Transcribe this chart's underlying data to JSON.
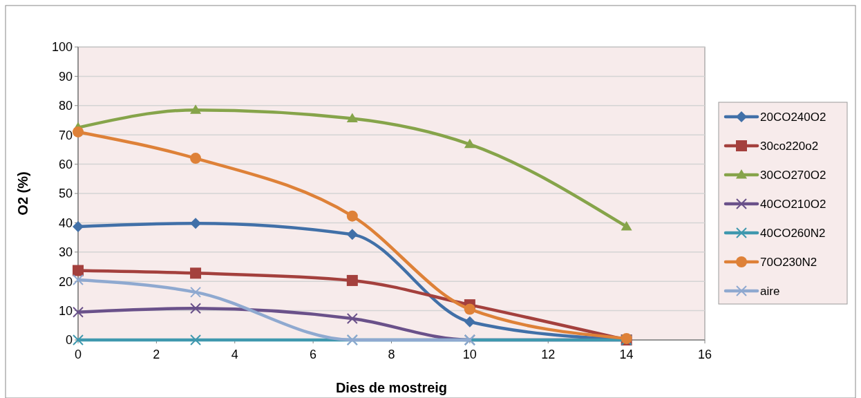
{
  "chart_data": {
    "type": "line",
    "xlabel": "Dies de mostreig",
    "ylabel": "O2  (%)",
    "x": [
      0,
      3,
      7,
      10,
      14
    ],
    "xlim": [
      0,
      16
    ],
    "xticks": [
      0,
      2,
      4,
      6,
      8,
      10,
      12,
      14,
      16
    ],
    "ylim": [
      0,
      100
    ],
    "yticks": [
      0,
      10,
      20,
      30,
      40,
      50,
      60,
      70,
      80,
      90,
      100
    ],
    "grid": "y",
    "legend": "right",
    "line_style": "solid",
    "series": [
      {
        "name": "20CO240O2",
        "color": "#4170a8",
        "marker": "diamond",
        "values": [
          38.7,
          39.8,
          36,
          6.2,
          0
        ]
      },
      {
        "name": "30co220o2",
        "color": "#a4403d",
        "marker": "square",
        "values": [
          23.7,
          22.8,
          20.3,
          12,
          0
        ]
      },
      {
        "name": "30CO270O2",
        "color": "#86a44a",
        "marker": "triangle",
        "values": [
          72.5,
          78.5,
          75.6,
          66.8,
          38.7
        ]
      },
      {
        "name": "40CO210O2",
        "color": "#6a518a",
        "marker": "cross",
        "values": [
          9.5,
          10.8,
          7.3,
          0,
          0
        ]
      },
      {
        "name": "40CO260N2",
        "color": "#3f98ae",
        "marker": "cross",
        "values": [
          0,
          0,
          0,
          0,
          0
        ]
      },
      {
        "name": "70O230N2",
        "color": "#de8138",
        "marker": "circle",
        "values": [
          71,
          62,
          42.3,
          10.5,
          0.5
        ]
      },
      {
        "name": "aire",
        "color": "#8fa9d0",
        "marker": "cross",
        "values": [
          20.5,
          16.3,
          0,
          0,
          null
        ]
      }
    ]
  }
}
